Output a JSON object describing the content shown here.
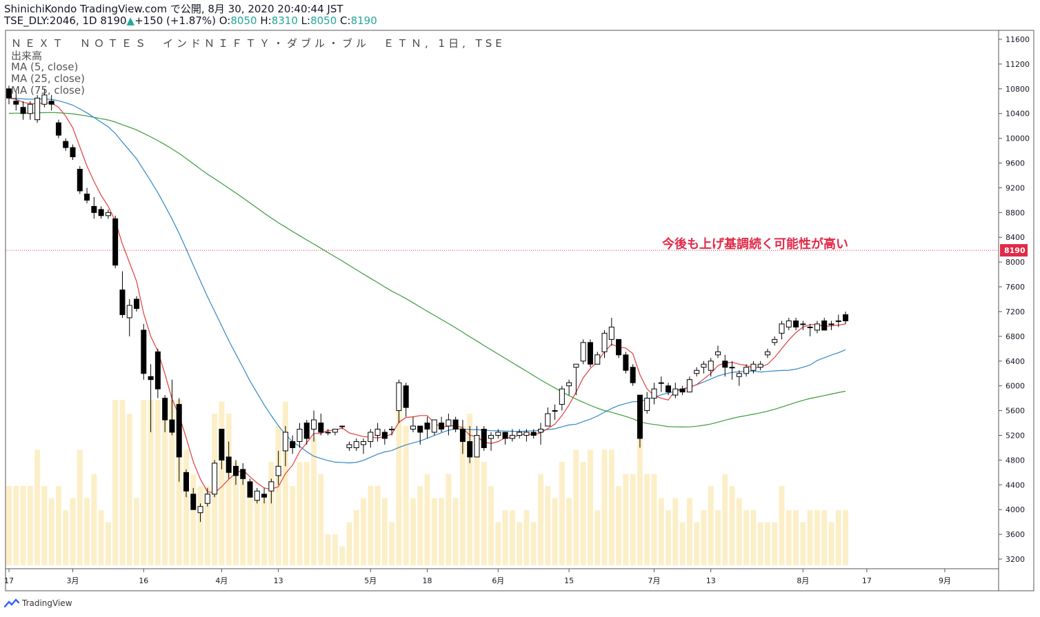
{
  "header": {
    "line1": "ShinichiKondo TradingView.com で公開, 8月 30, 2020 20:40:44 JST",
    "symbol": "TSE_DLY:2046, 1D 8190",
    "change": "+150 (+1.87%)",
    "open_label": "O:",
    "open": "8050",
    "high_label": "H:",
    "high": "8310",
    "low_label": "L:",
    "low": "8050",
    "close_label": "C:",
    "close": "8190"
  },
  "legend": {
    "title": "ＮＥＸＴ　ＮＯＴＥＳ　インドＮＩＦＴＹ・ダブル・ブル　ＥＴＮ, 1日, TSE",
    "volume": "出来高",
    "ma5": "MA (5, close)",
    "ma25": "MA (25, close)",
    "ma75": "MA (75, close)"
  },
  "annotation": "今後も上げ基調続く可能性が高い",
  "branding": "TradingView",
  "colors": {
    "ma5": "#e23b3b",
    "ma25": "#2f86c8",
    "ma75": "#3a9a3a",
    "volume": "#fcefc8",
    "price_label_bg": "#e02a48",
    "annotation": "#e02a48"
  },
  "chart_data": {
    "type": "candlestick",
    "ylim": [
      3100,
      11700
    ],
    "yticks": [
      3200,
      3600,
      4000,
      4400,
      4800,
      5200,
      5600,
      6000,
      6400,
      6800,
      7200,
      7600,
      8000,
      8400,
      8800,
      9200,
      9600,
      10000,
      10400,
      10800,
      11200,
      11600
    ],
    "last_price": 8190,
    "last_price_label": "8190",
    "xticks": [
      {
        "label": "17",
        "i": 0
      },
      {
        "label": "3月",
        "i": 9
      },
      {
        "label": "16",
        "i": 19
      },
      {
        "label": "4月",
        "i": 30
      },
      {
        "label": "13",
        "i": 38
      },
      {
        "label": "5月",
        "i": 51
      },
      {
        "label": "18",
        "i": 59
      },
      {
        "label": "6月",
        "i": 69
      },
      {
        "label": "15",
        "i": 79
      },
      {
        "label": "7月",
        "i": 91
      },
      {
        "label": "13",
        "i": 99
      },
      {
        "label": "8月",
        "i": 112
      },
      {
        "label": "17",
        "i": 121
      },
      {
        "label": "9月",
        "i": 132
      }
    ],
    "candles": [
      [
        10800,
        10850,
        10550,
        10650
      ],
      [
        10600,
        10750,
        10450,
        10550
      ],
      [
        10500,
        10600,
        10300,
        10400
      ],
      [
        10400,
        10600,
        10300,
        10550
      ],
      [
        10300,
        10700,
        10250,
        10650
      ],
      [
        10550,
        10800,
        10500,
        10700
      ],
      [
        10600,
        10700,
        10450,
        10550
      ],
      [
        10250,
        10300,
        10000,
        10050
      ],
      [
        9950,
        10000,
        9800,
        9850
      ],
      [
        9850,
        9900,
        9650,
        9700
      ],
      [
        9500,
        9550,
        9100,
        9150
      ],
      [
        9100,
        9200,
        8950,
        9000
      ],
      [
        8900,
        9050,
        8700,
        8800
      ],
      [
        8850,
        8900,
        8700,
        8750
      ],
      [
        8750,
        8850,
        8700,
        8800
      ],
      [
        8700,
        8750,
        7900,
        7950
      ],
      [
        7550,
        7850,
        7100,
        7150
      ],
      [
        7100,
        7400,
        6800,
        7300
      ],
      [
        7400,
        7450,
        7200,
        7250
      ],
      [
        6900,
        7000,
        6100,
        6200
      ],
      [
        6150,
        6350,
        5250,
        6100
      ],
      [
        6550,
        6600,
        5800,
        5950
      ],
      [
        5800,
        5850,
        5250,
        5450
      ],
      [
        5450,
        6100,
        5200,
        5250
      ],
      [
        5700,
        5800,
        4450,
        4850
      ],
      [
        4600,
        4650,
        4200,
        4300
      ],
      [
        4250,
        4350,
        4000,
        4000
      ],
      [
        3950,
        4100,
        3800,
        4050
      ],
      [
        4100,
        4350,
        4050,
        4250
      ],
      [
        4250,
        4800,
        4200,
        4750
      ],
      [
        5300,
        5300,
        4650,
        4800
      ],
      [
        4850,
        5100,
        4500,
        4600
      ],
      [
        4700,
        4800,
        4400,
        4550
      ],
      [
        4650,
        4750,
        4400,
        4500
      ],
      [
        4450,
        4500,
        4200,
        4200
      ],
      [
        4150,
        4350,
        4100,
        4300
      ],
      [
        4250,
        4350,
        4100,
        4200
      ],
      [
        4300,
        4500,
        4100,
        4450
      ],
      [
        4550,
        4950,
        4400,
        4700
      ],
      [
        4950,
        5350,
        4700,
        5250
      ],
      [
        5100,
        5200,
        4900,
        5000
      ],
      [
        5100,
        5400,
        5000,
        5300
      ],
      [
        5400,
        5450,
        5050,
        5150
      ],
      [
        5300,
        5600,
        5100,
        5450
      ],
      [
        5400,
        5550,
        5200,
        5250
      ],
      [
        5250,
        5300,
        5200,
        5250
      ],
      [
        5250,
        5300,
        5200,
        5300
      ],
      [
        5350,
        5350,
        5300,
        5350
      ],
      [
        5000,
        5100,
        4950,
        5050
      ],
      [
        5000,
        5150,
        4950,
        5100
      ],
      [
        5050,
        5150,
        4900,
        5100
      ],
      [
        5100,
        5300,
        5000,
        5250
      ],
      [
        5200,
        5400,
        5100,
        5300
      ],
      [
        5250,
        5300,
        5050,
        5150
      ],
      [
        5300,
        5350,
        5200,
        5300
      ],
      [
        5600,
        6100,
        5400,
        6050
      ],
      [
        6000,
        6050,
        5500,
        5650
      ],
      [
        5300,
        5500,
        5250,
        5350
      ],
      [
        5350,
        5350,
        5050,
        5250
      ],
      [
        5400,
        5500,
        5150,
        5300
      ],
      [
        5250,
        5450,
        5200,
        5450
      ],
      [
        5400,
        5500,
        5250,
        5300
      ],
      [
        5350,
        5550,
        5200,
        5450
      ],
      [
        5450,
        5500,
        5250,
        5300
      ],
      [
        5300,
        5450,
        4900,
        5100
      ],
      [
        5100,
        5350,
        4750,
        4850
      ],
      [
        4850,
        5350,
        4850,
        5200
      ],
      [
        5300,
        5350,
        4950,
        5000
      ],
      [
        5150,
        5250,
        4950,
        5200
      ],
      [
        5200,
        5300,
        5150,
        5250
      ],
      [
        5250,
        5250,
        5050,
        5150
      ],
      [
        5150,
        5300,
        5100,
        5200
      ],
      [
        5200,
        5300,
        5150,
        5250
      ],
      [
        5200,
        5300,
        5100,
        5250
      ],
      [
        5250,
        5300,
        5150,
        5200
      ],
      [
        5250,
        5400,
        5050,
        5300
      ],
      [
        5350,
        5650,
        5350,
        5550
      ],
      [
        5600,
        5700,
        5450,
        5600
      ],
      [
        5700,
        6000,
        5600,
        5950
      ],
      [
        6000,
        6100,
        5850,
        6050
      ],
      [
        6300,
        6300,
        5850,
        6350
      ],
      [
        6400,
        6750,
        6350,
        6700
      ],
      [
        6700,
        6750,
        6300,
        6350
      ],
      [
        6350,
        6550,
        6350,
        6500
      ],
      [
        6550,
        6900,
        6450,
        6850
      ],
      [
        6750,
        7100,
        6650,
        6950
      ],
      [
        6750,
        6750,
        6450,
        6500
      ],
      [
        6500,
        6550,
        6200,
        6250
      ],
      [
        6300,
        6350,
        6000,
        6050
      ],
      [
        5850,
        5850,
        5000,
        5150
      ],
      [
        5600,
        5900,
        5550,
        5800
      ],
      [
        5800,
        6050,
        5700,
        5950
      ],
      [
        6050,
        6150,
        5900,
        6050
      ],
      [
        6000,
        6050,
        5850,
        5900
      ],
      [
        5850,
        6050,
        5800,
        5950
      ],
      [
        5950,
        6000,
        5850,
        5900
      ],
      [
        5900,
        6150,
        5900,
        6100
      ],
      [
        6200,
        6300,
        6150,
        6250
      ],
      [
        6300,
        6400,
        6200,
        6350
      ],
      [
        6250,
        6450,
        6150,
        6400
      ],
      [
        6500,
        6650,
        6450,
        6550
      ],
      [
        6400,
        6500,
        6150,
        6300
      ],
      [
        6300,
        6400,
        6100,
        6300
      ],
      [
        6150,
        6250,
        6000,
        6200
      ],
      [
        6200,
        6350,
        6150,
        6300
      ],
      [
        6250,
        6400,
        6200,
        6350
      ],
      [
        6300,
        6400,
        6250,
        6350
      ],
      [
        6500,
        6600,
        6450,
        6550
      ],
      [
        6700,
        6800,
        6650,
        6750
      ],
      [
        6850,
        7050,
        6750,
        7000
      ],
      [
        6950,
        7100,
        6900,
        7050
      ],
      [
        7050,
        7100,
        6900,
        6950
      ],
      [
        7000,
        7050,
        6900,
        7000
      ],
      [
        6950,
        7000,
        6800,
        6950
      ],
      [
        6900,
        7050,
        6850,
        7000
      ],
      [
        7050,
        7100,
        6900,
        6900
      ],
      [
        7000,
        7050,
        6900,
        7000
      ],
      [
        7050,
        7150,
        6950,
        7050
      ],
      [
        7150,
        7200,
        7000,
        7050
      ]
    ]
  }
}
